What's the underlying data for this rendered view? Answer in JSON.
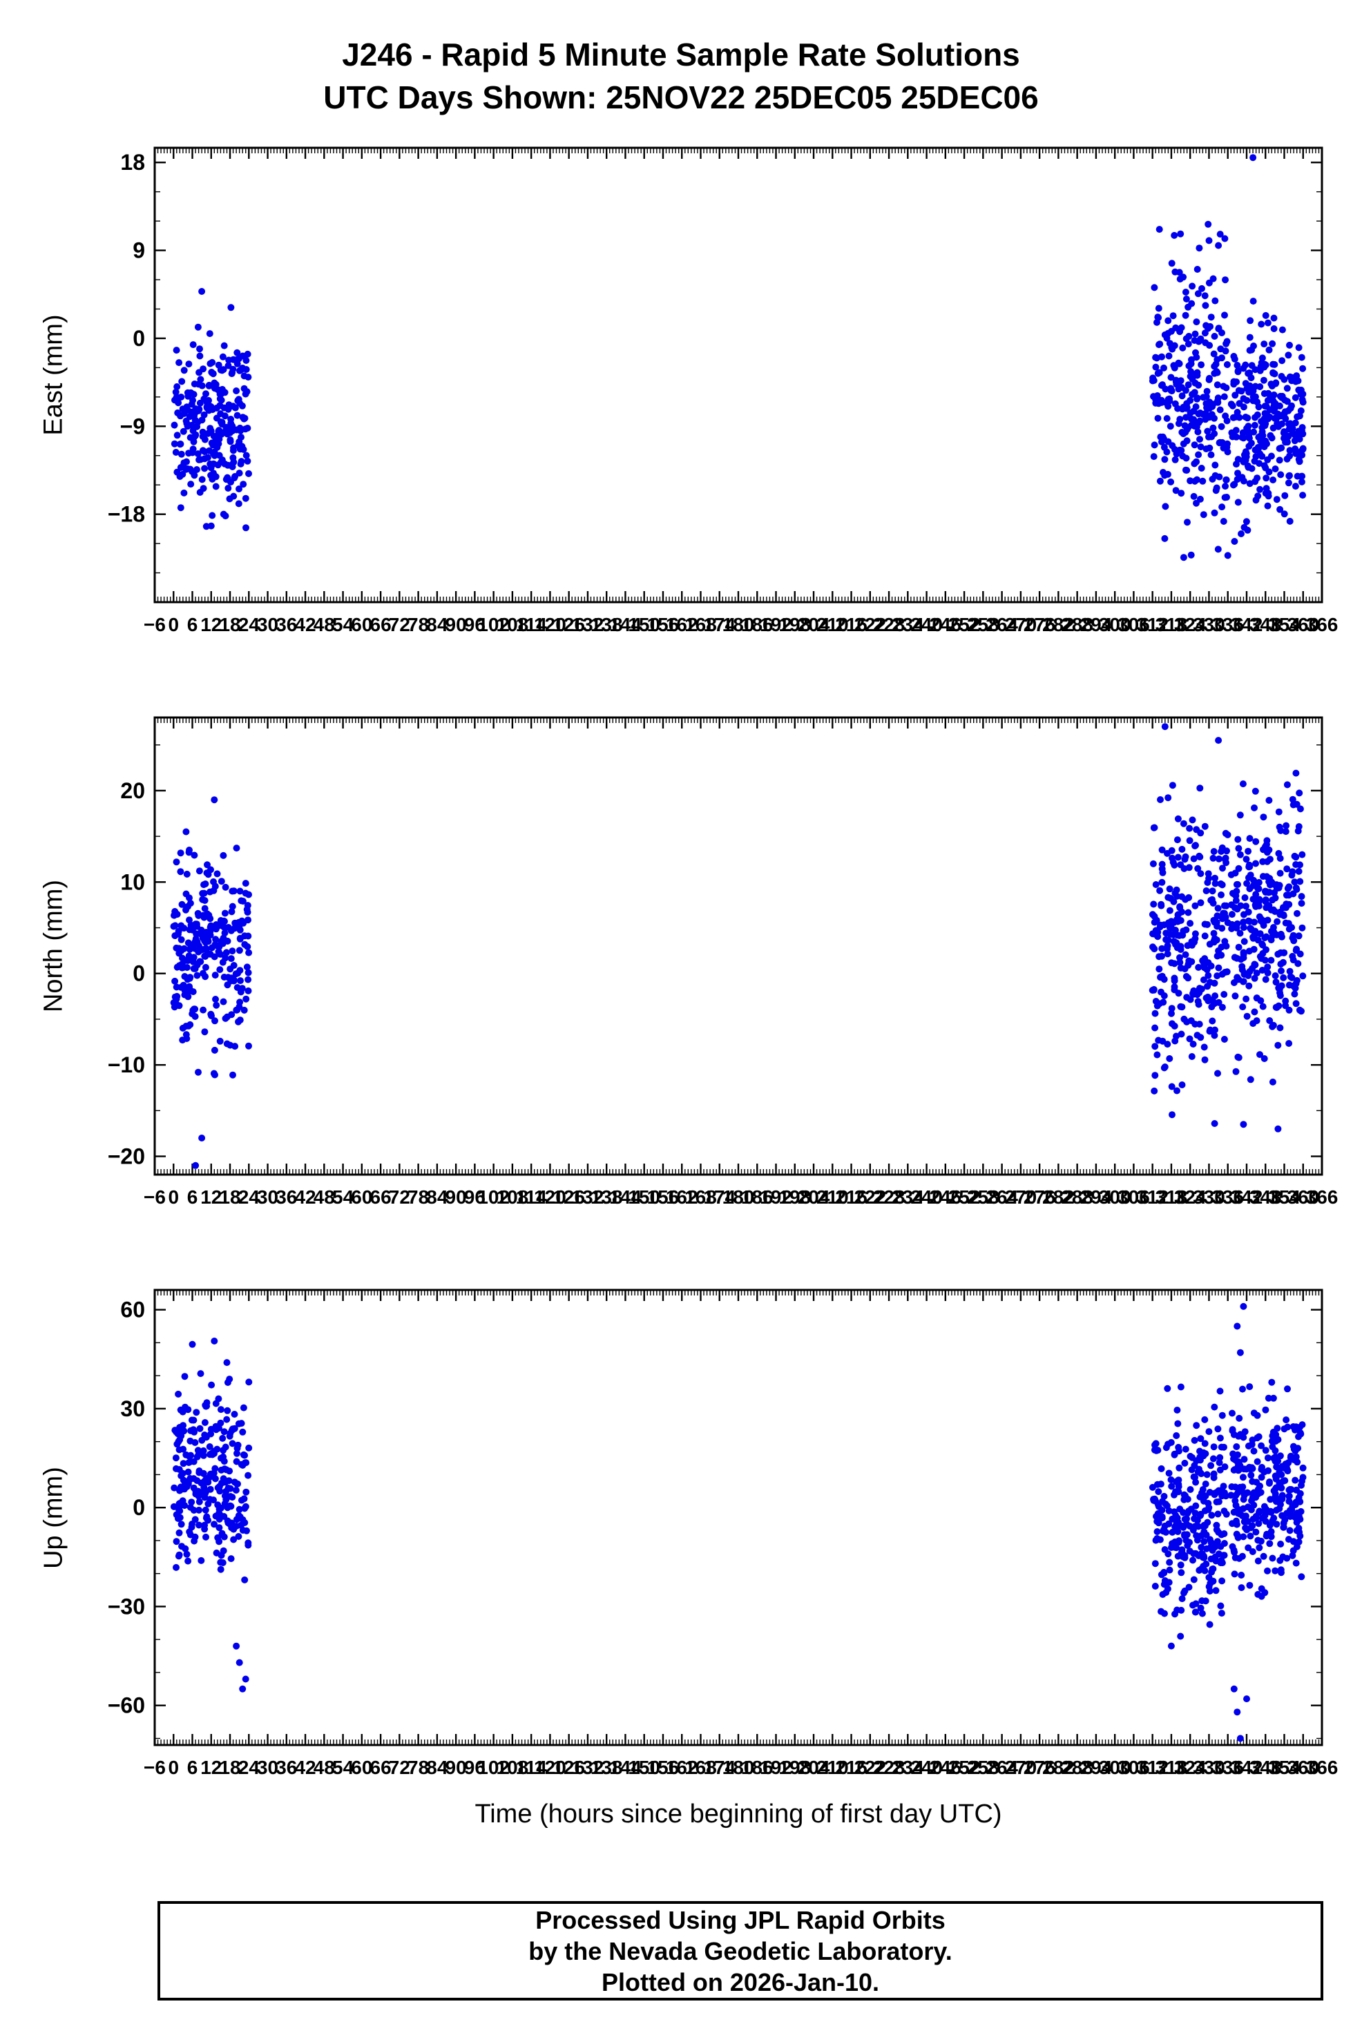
{
  "title": {
    "line1": "J246 - Rapid 5 Minute Sample Rate Solutions",
    "line2": "UTC Days Shown:  25NOV22 25DEC05 25DEC06"
  },
  "x_axis_title": "Time (hours since beginning of first day UTC)",
  "footer": {
    "line1": "Processed Using JPL Rapid Orbits",
    "line2": "by the Nevada Geodetic Laboratory.",
    "line3": "Plotted on 2026-Jan-10."
  },
  "colors": {
    "point": "#0000EE",
    "axis": "#000000",
    "background": "#ffffff"
  },
  "chart_data": [
    {
      "type": "scatter",
      "ylabel": "East (mm)",
      "ylim": [
        -27,
        19.5
      ],
      "yticks": [
        18,
        9,
        0,
        -9,
        -18
      ],
      "y_minor_step": 3,
      "xlim": [
        -6,
        366
      ],
      "xtick_step": 6,
      "x_minor_step": 1,
      "legend": "none",
      "grid": false,
      "seed": 1001,
      "clusters": [
        {
          "x_start": 0,
          "x_end": 24,
          "count": 270,
          "mean": -8.5,
          "sd": 4.2,
          "min": -19.5,
          "max": 4.5
        },
        {
          "x_start": 312,
          "x_end": 336,
          "count": 290,
          "mean": -6.5,
          "sd": 6.5,
          "min": -25,
          "max": 13
        },
        {
          "x_start": 337,
          "x_end": 360,
          "count": 290,
          "mean": -8.5,
          "sd": 4.5,
          "min": -21,
          "max": 5
        }
      ],
      "extra_points": [
        [
          344,
          18.5
        ],
        [
          330,
          10
        ],
        [
          333,
          9.5
        ],
        [
          9,
          4.8
        ],
        [
          12,
          -19.2
        ]
      ]
    },
    {
      "type": "scatter",
      "ylabel": "North (mm)",
      "ylim": [
        -22,
        28
      ],
      "yticks": [
        20,
        10,
        0,
        -10,
        -20
      ],
      "y_minor_step": 5,
      "xlim": [
        -6,
        366
      ],
      "xtick_step": 6,
      "x_minor_step": 1,
      "legend": "none",
      "grid": false,
      "seed": 2002,
      "clusters": [
        {
          "x_start": 0,
          "x_end": 24,
          "count": 270,
          "mean": 2,
          "sd": 5,
          "min": -12,
          "max": 14
        },
        {
          "x_start": 312,
          "x_end": 336,
          "count": 290,
          "mean": 3,
          "sd": 8,
          "min": -17,
          "max": 24
        },
        {
          "x_start": 337,
          "x_end": 360,
          "count": 290,
          "mean": 5,
          "sd": 6.5,
          "min": -13,
          "max": 22
        }
      ],
      "extra_points": [
        [
          7,
          -21
        ],
        [
          9,
          -18
        ],
        [
          13,
          19
        ],
        [
          4,
          15.5
        ],
        [
          5,
          13.5
        ],
        [
          316,
          27
        ],
        [
          333,
          25.5
        ],
        [
          352,
          -17
        ],
        [
          341,
          -16.5
        ],
        [
          358,
          18.5
        ]
      ]
    },
    {
      "type": "scatter",
      "ylabel": "Up (mm)",
      "ylim": [
        -72,
        66
      ],
      "yticks": [
        60,
        30,
        0,
        -30,
        -60
      ],
      "y_minor_step": 10,
      "xlim": [
        -6,
        366
      ],
      "xtick_step": 6,
      "x_minor_step": 1,
      "legend": "none",
      "grid": false,
      "seed": 3003,
      "clusters": [
        {
          "x_start": 0,
          "x_end": 24,
          "count": 270,
          "mean": 8,
          "sd": 13,
          "min": -30,
          "max": 42
        },
        {
          "x_start": 312,
          "x_end": 336,
          "count": 290,
          "mean": -3,
          "sd": 16,
          "min": -48,
          "max": 40
        },
        {
          "x_start": 337,
          "x_end": 360,
          "count": 290,
          "mean": 3,
          "sd": 13,
          "min": -28,
          "max": 40
        }
      ],
      "extra_points": [
        [
          6,
          49.5
        ],
        [
          13,
          50.5
        ],
        [
          17,
          44
        ],
        [
          20,
          -42
        ],
        [
          21,
          -47
        ],
        [
          22,
          -55
        ],
        [
          23,
          -52
        ],
        [
          339,
          55
        ],
        [
          341,
          61
        ],
        [
          340,
          47
        ],
        [
          338,
          -55
        ],
        [
          339,
          -62
        ],
        [
          340,
          -70
        ],
        [
          342,
          -58
        ],
        [
          350,
          38
        ],
        [
          355,
          36
        ]
      ]
    }
  ]
}
